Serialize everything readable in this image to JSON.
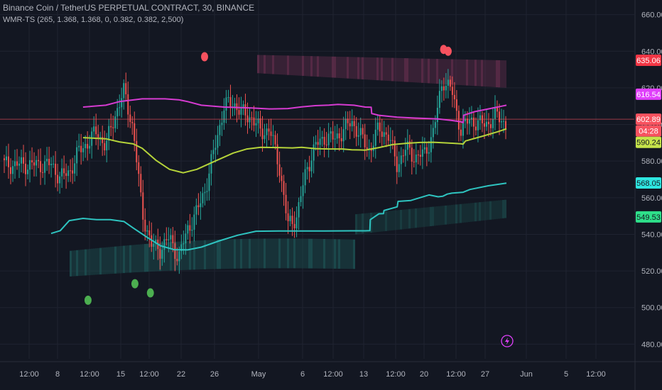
{
  "header": {
    "symbol_line": "Binance Coin / TetherUS PERPETUAL CONTRACT, 30, BINANCE",
    "indicator_line": "WMR-TS (265, 1.368, 1.368, 0, 0.382, 0.382, 2,500)"
  },
  "colors": {
    "background": "#131722",
    "grid": "#1f2330",
    "candle_up": "#26a69a",
    "candle_down": "#ef5350",
    "upper_band": "#d63bd1",
    "mid_band": "#b5d33a",
    "lower_band": "#2ec4c0",
    "top_zone": "#7a3558",
    "bottom_zone": "#1f5c5b",
    "sell_marker": "#f7525f",
    "buy_marker": "#4caf50",
    "price_line": "#f7525f"
  },
  "chart_data": {
    "type": "line",
    "title": "Binance Coin / TetherUS PERPETUAL CONTRACT, 30, BINANCE",
    "ylim": [
      472,
      668
    ],
    "x_ticks": [
      "12:00",
      "8",
      "12:00",
      "15",
      "12:00",
      "22",
      "26",
      "May",
      "6",
      "12:00",
      "13",
      "12:00",
      "20",
      "12:00",
      "27",
      "Jun",
      "5",
      "12:00"
    ],
    "y_ticks": [
      "660.00",
      "640.00",
      "620.00",
      "600.00",
      "580.00",
      "560.00",
      "540.00",
      "520.00",
      "500.00",
      "480.00"
    ],
    "y_tick_values": [
      660,
      640,
      620,
      600,
      580,
      560,
      540,
      520,
      500,
      480
    ],
    "price_labels": [
      {
        "text": "635.06",
        "value": 635.06,
        "color": "#f23645",
        "text_color": "#ffffff"
      },
      {
        "text": "616.54",
        "value": 616.54,
        "color": "#e040fb",
        "text_color": "#ffffff"
      },
      {
        "text": "602.89",
        "value": 602.89,
        "color": "#f7525f",
        "text_color": "#ffffff"
      },
      {
        "text": "04:28",
        "value": 596.5,
        "color": "#f7525f",
        "text_color": "#ffffff"
      },
      {
        "text": "590.24",
        "value": 590.24,
        "color": "#c6e44a",
        "text_color": "#131722"
      },
      {
        "text": "568.05",
        "value": 568.05,
        "color": "#2ee6e0",
        "text_color": "#131722"
      },
      {
        "text": "549.53",
        "value": 549.53,
        "color": "#2ee08a",
        "text_color": "#131722"
      }
    ],
    "series": [
      {
        "name": "Upper band",
        "values": [
          [
            0.07,
            609.5
          ],
          [
            0.12,
            610.5
          ],
          [
            0.15,
            612.5
          ],
          [
            0.2,
            614
          ],
          [
            0.25,
            614
          ],
          [
            0.28,
            613.5
          ],
          [
            0.3,
            612.5
          ],
          [
            0.33,
            610.5
          ],
          [
            0.38,
            609.5
          ],
          [
            0.44,
            609
          ],
          [
            0.48,
            608.5
          ],
          [
            0.52,
            608.7
          ],
          [
            0.55,
            609.6
          ],
          [
            0.58,
            610.3
          ],
          [
            0.61,
            610.6
          ],
          [
            0.63,
            611
          ],
          [
            0.665,
            610.5
          ],
          [
            0.69,
            609.5
          ],
          [
            0.703,
            609.4
          ],
          [
            0.704,
            606
          ],
          [
            0.72,
            605
          ],
          [
            0.76,
            604
          ],
          [
            0.8,
            603.5
          ],
          [
            0.85,
            603
          ],
          [
            0.88,
            602.2
          ],
          [
            0.9,
            601.5
          ],
          [
            0.905,
            601
          ],
          [
            0.906,
            605
          ],
          [
            0.93,
            607
          ],
          [
            0.96,
            608.5
          ],
          [
            0.99,
            610
          ],
          [
            1.0,
            610.5
          ]
        ]
      },
      {
        "name": "Mid band",
        "values": [
          [
            0.07,
            592.8
          ],
          [
            0.12,
            592.2
          ],
          [
            0.15,
            590.5
          ],
          [
            0.18,
            589.4
          ],
          [
            0.2,
            587
          ],
          [
            0.23,
            580.5
          ],
          [
            0.26,
            575.5
          ],
          [
            0.29,
            573.6
          ],
          [
            0.32,
            575.5
          ],
          [
            0.36,
            580
          ],
          [
            0.4,
            584.4
          ],
          [
            0.43,
            586.6
          ],
          [
            0.46,
            587.5
          ],
          [
            0.5,
            587.4
          ],
          [
            0.53,
            587.2
          ],
          [
            0.55,
            587.5
          ],
          [
            0.58,
            586.8
          ],
          [
            0.61,
            586.6
          ],
          [
            0.64,
            586.6
          ],
          [
            0.66,
            586.2
          ],
          [
            0.69,
            586
          ],
          [
            0.72,
            587.4
          ],
          [
            0.75,
            589
          ],
          [
            0.78,
            589.7
          ],
          [
            0.81,
            590.2
          ],
          [
            0.84,
            590.3
          ],
          [
            0.87,
            589.9
          ],
          [
            0.9,
            589.5
          ],
          [
            0.905,
            589.3
          ],
          [
            0.91,
            591
          ],
          [
            0.95,
            593.8
          ],
          [
            0.98,
            596
          ],
          [
            1.0,
            597.6
          ]
        ]
      },
      {
        "name": "Lower band",
        "values": [
          [
            0.0,
            540.5
          ],
          [
            0.02,
            542
          ],
          [
            0.04,
            547.5
          ],
          [
            0.07,
            548.7
          ],
          [
            0.1,
            548
          ],
          [
            0.13,
            548
          ],
          [
            0.16,
            547
          ],
          [
            0.18,
            543.5
          ],
          [
            0.21,
            538.5
          ],
          [
            0.24,
            533.8
          ],
          [
            0.27,
            531.6
          ],
          [
            0.3,
            531.5
          ],
          [
            0.33,
            533
          ],
          [
            0.37,
            536.5
          ],
          [
            0.41,
            539.5
          ],
          [
            0.45,
            541.7
          ],
          [
            0.5,
            541.8
          ],
          [
            0.55,
            541.8
          ],
          [
            0.6,
            541.8
          ],
          [
            0.66,
            541.9
          ],
          [
            0.69,
            541.9
          ],
          [
            0.7,
            542
          ],
          [
            0.701,
            548
          ],
          [
            0.72,
            551.2
          ],
          [
            0.73,
            551.3
          ],
          [
            0.731,
            553
          ],
          [
            0.76,
            555
          ],
          [
            0.762,
            558
          ],
          [
            0.79,
            558.5
          ],
          [
            0.81,
            560
          ],
          [
            0.83,
            561.5
          ],
          [
            0.85,
            560.5
          ],
          [
            0.86,
            560.8
          ],
          [
            0.87,
            562
          ],
          [
            0.88,
            562.5
          ],
          [
            0.905,
            563
          ],
          [
            0.92,
            564.5
          ],
          [
            0.96,
            566.5
          ],
          [
            1.0,
            568
          ]
        ]
      }
    ],
    "markers": [
      {
        "type": "sell",
        "x": 0.337,
        "y": 637
      },
      {
        "type": "sell",
        "x": 0.862,
        "y": 641
      },
      {
        "type": "sell",
        "x": 0.872,
        "y": 640
      },
      {
        "type": "buy",
        "x": 0.081,
        "y": 504
      },
      {
        "type": "buy",
        "x": 0.184,
        "y": 513
      },
      {
        "type": "buy",
        "x": 0.218,
        "y": 508
      }
    ]
  }
}
